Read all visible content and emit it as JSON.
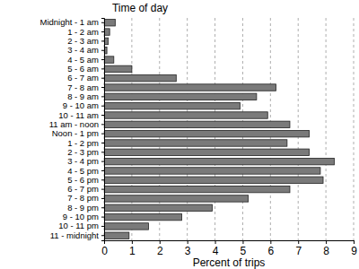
{
  "chart_data": {
    "type": "bar",
    "orientation": "horizontal",
    "y_label": "Time of day",
    "x_label": "Percent of trips",
    "categories": [
      "Midnight - 1 am",
      "1 - 2 am",
      "2 - 3 am",
      "3 - 4 am",
      "4 - 5 am",
      "5 - 6 am",
      "6 - 7 am",
      "7 - 8 am",
      "8 - 9 am",
      "9 - 10 am",
      "10 - 11 am",
      "11 am - noon",
      "Noon - 1 pm",
      "1 - 2 pm",
      "2 - 3 pm",
      "3 - 4 pm",
      "4 - 5 pm",
      "5 - 6 pm",
      "6 - 7 pm",
      "7 - 8 pm",
      "8 - 9 pm",
      "9 - 10 pm",
      "10 - 11 pm",
      "11 - midnight"
    ],
    "values": [
      0.4,
      0.2,
      0.15,
      0.1,
      0.35,
      1.0,
      2.6,
      6.2,
      5.5,
      4.9,
      5.9,
      6.7,
      7.4,
      6.6,
      7.4,
      8.3,
      7.8,
      7.9,
      6.7,
      5.2,
      3.9,
      2.8,
      1.6,
      0.9
    ],
    "color": "#7a7a7a",
    "xlim": [
      0,
      9
    ],
    "xticks": [
      0,
      1,
      2,
      3,
      4,
      5,
      6,
      7,
      8,
      9
    ],
    "grid": true
  }
}
